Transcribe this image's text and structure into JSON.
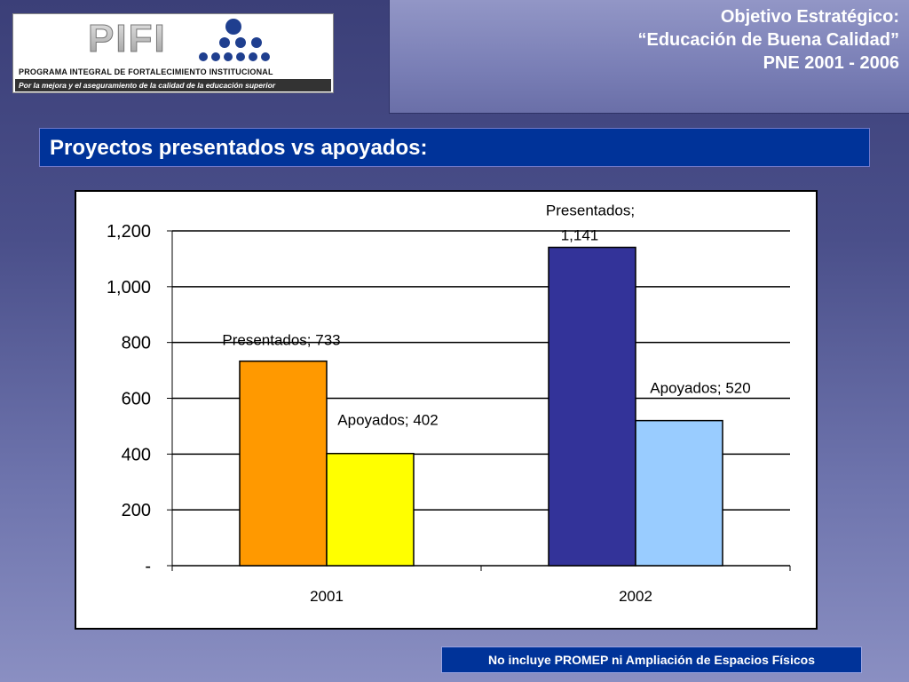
{
  "header": {
    "title_line1": "Objetivo Estratégico:",
    "title_line2": "“Educación de Buena Calidad”",
    "title_line3": "PNE 2001 - 2006"
  },
  "logo": {
    "mark": "PIFI",
    "title": "PROGRAMA INTEGRAL DE FORTALECIMIENTO INSTITUCIONAL",
    "subtitle": "Por la mejora y el aseguramiento de la calidad de la educación superior"
  },
  "section": {
    "title": "Proyectos presentados vs apoyados:"
  },
  "chart_data": {
    "type": "bar",
    "categories": [
      "2001",
      "2002"
    ],
    "series": [
      {
        "name": "Presentados",
        "values": [
          733,
          1141
        ]
      },
      {
        "name": "Apoyados",
        "values": [
          402,
          520
        ]
      }
    ],
    "bar_colors": [
      [
        "#ff9900",
        "#ffff00"
      ],
      [
        "#333399",
        "#99ccff"
      ]
    ],
    "data_labels": [
      [
        "Presentados;  733",
        "Apoyados;  402"
      ],
      [
        "Presentados;",
        "Apoyados;  520"
      ]
    ],
    "data_label_extra": "1,141",
    "yticks": [
      0,
      200,
      400,
      600,
      800,
      1000,
      1200
    ],
    "ytick_labels": [
      "-",
      "200",
      "400",
      "600",
      "800",
      "1,000",
      "1,200"
    ],
    "ylim": [
      0,
      1200
    ],
    "grid": true,
    "legend": "none"
  },
  "note": {
    "text": "No incluye PROMEP ni Ampliación de Espacios Físicos"
  }
}
